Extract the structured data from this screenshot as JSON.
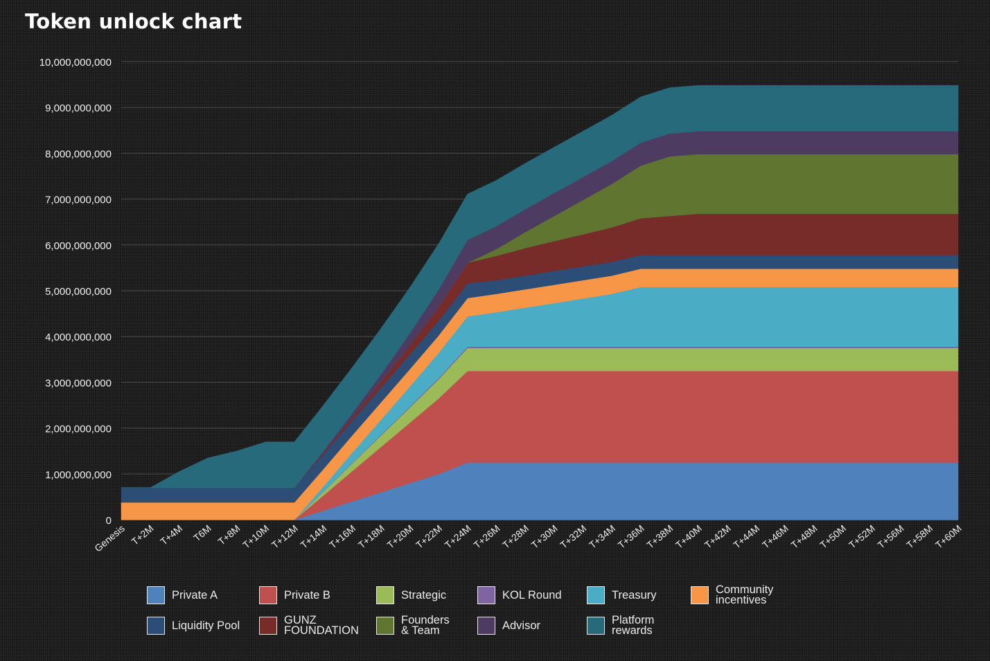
{
  "chart_data": {
    "type": "area",
    "stacked": true,
    "title": "Token unlock chart",
    "x": [
      "Genesis",
      "T+2M",
      "T+4M",
      "T6M",
      "T+8M",
      "T+10M",
      "T+12M",
      "T+14M",
      "T+16M",
      "T+18M",
      "T+20M",
      "T+22M",
      "T+24M",
      "T+26M",
      "T+28M",
      "T+30M",
      "T+32M",
      "T+34M",
      "T+36M",
      "T+38M",
      "T+40M",
      "T+42M",
      "T+44M",
      "T+46M",
      "T+48M",
      "T+50M",
      "T+52M",
      "T+56M",
      "T+58M",
      "T+60M"
    ],
    "ylim": [
      0,
      10000000000
    ],
    "yticks": [
      0,
      1000000000,
      2000000000,
      3000000000,
      4000000000,
      5000000000,
      6000000000,
      7000000000,
      8000000000,
      9000000000,
      10000000000
    ],
    "ytick_labels": [
      "0",
      "1,000,000,000",
      "2,000,000,000",
      "3,000,000,000",
      "4,000,000,000",
      "5,000,000,000",
      "6,000,000,000",
      "7,000,000,000",
      "8,000,000,000",
      "9,000,000,000",
      "10,000,000,000"
    ],
    "grid": true,
    "legend_position": "bottom",
    "series": [
      {
        "name": "Private A",
        "color": "#4f81bd",
        "values": [
          0,
          0,
          0,
          0,
          0,
          0,
          0,
          200000000,
          400000000,
          600000000,
          800000000,
          1000000000,
          1250000000,
          1250000000,
          1250000000,
          1250000000,
          1250000000,
          1250000000,
          1250000000,
          1250000000,
          1250000000,
          1250000000,
          1250000000,
          1250000000,
          1250000000,
          1250000000,
          1250000000,
          1250000000,
          1250000000,
          1250000000
        ]
      },
      {
        "name": "Private B",
        "color": "#c0504d",
        "values": [
          0,
          0,
          0,
          0,
          0,
          0,
          0,
          330000000,
          660000000,
          990000000,
          1320000000,
          1650000000,
          2000000000,
          2000000000,
          2000000000,
          2000000000,
          2000000000,
          2000000000,
          2000000000,
          2000000000,
          2000000000,
          2000000000,
          2000000000,
          2000000000,
          2000000000,
          2000000000,
          2000000000,
          2000000000,
          2000000000,
          2000000000
        ]
      },
      {
        "name": "Strategic",
        "color": "#9bbb59",
        "values": [
          0,
          0,
          0,
          0,
          0,
          0,
          0,
          80000000,
          170000000,
          250000000,
          330000000,
          420000000,
          500000000,
          500000000,
          500000000,
          500000000,
          500000000,
          500000000,
          500000000,
          500000000,
          500000000,
          500000000,
          500000000,
          500000000,
          500000000,
          500000000,
          500000000,
          500000000,
          500000000,
          500000000
        ]
      },
      {
        "name": "KOL Round",
        "color": "#8064a2",
        "values": [
          0,
          0,
          0,
          0,
          0,
          0,
          0,
          5000000,
          10000000,
          15000000,
          20000000,
          25000000,
          30000000,
          30000000,
          30000000,
          30000000,
          30000000,
          30000000,
          30000000,
          30000000,
          30000000,
          30000000,
          30000000,
          30000000,
          30000000,
          30000000,
          30000000,
          30000000,
          30000000,
          30000000
        ]
      },
      {
        "name": "Treasury",
        "color": "#4bacc6",
        "values": [
          0,
          0,
          0,
          0,
          0,
          0,
          0,
          110000000,
          220000000,
          330000000,
          440000000,
          550000000,
          660000000,
          750000000,
          850000000,
          950000000,
          1050000000,
          1150000000,
          1300000000,
          1300000000,
          1300000000,
          1300000000,
          1300000000,
          1300000000,
          1300000000,
          1300000000,
          1300000000,
          1300000000,
          1300000000,
          1300000000
        ]
      },
      {
        "name": "Community incentives",
        "color": "#f79646",
        "values": [
          380000000,
          380000000,
          380000000,
          380000000,
          380000000,
          380000000,
          380000000,
          380000000,
          380000000,
          380000000,
          380000000,
          380000000,
          400000000,
          400000000,
          400000000,
          400000000,
          400000000,
          400000000,
          400000000,
          400000000,
          400000000,
          400000000,
          400000000,
          400000000,
          400000000,
          400000000,
          400000000,
          400000000,
          400000000,
          400000000
        ]
      },
      {
        "name": "Liquidity Pool",
        "color": "#2c4d75",
        "values": [
          320000000,
          320000000,
          320000000,
          320000000,
          320000000,
          320000000,
          320000000,
          320000000,
          320000000,
          320000000,
          320000000,
          320000000,
          320000000,
          300000000,
          300000000,
          300000000,
          300000000,
          300000000,
          300000000,
          300000000,
          300000000,
          300000000,
          300000000,
          300000000,
          300000000,
          300000000,
          300000000,
          300000000,
          300000000,
          300000000
        ]
      },
      {
        "name": "GUNZ FOUNDATION",
        "color": "#772c2a",
        "values": [
          0,
          0,
          0,
          0,
          0,
          0,
          0,
          30000000,
          70000000,
          130000000,
          200000000,
          300000000,
          450000000,
          530000000,
          600000000,
          650000000,
          700000000,
          750000000,
          800000000,
          850000000,
          900000000,
          900000000,
          900000000,
          900000000,
          900000000,
          900000000,
          900000000,
          900000000,
          900000000,
          900000000
        ]
      },
      {
        "name": "Founders & Team",
        "color": "#5f7530",
        "values": [
          0,
          0,
          0,
          0,
          0,
          0,
          0,
          0,
          0,
          0,
          0,
          0,
          0,
          150000000,
          350000000,
          550000000,
          750000000,
          950000000,
          1150000000,
          1300000000,
          1300000000,
          1300000000,
          1300000000,
          1300000000,
          1300000000,
          1300000000,
          1300000000,
          1300000000,
          1300000000,
          1300000000
        ]
      },
      {
        "name": "Advisor",
        "color": "#4d3b62",
        "values": [
          0,
          0,
          0,
          0,
          0,
          0,
          0,
          40000000,
          90000000,
          160000000,
          260000000,
          380000000,
          500000000,
          500000000,
          500000000,
          500000000,
          500000000,
          500000000,
          500000000,
          500000000,
          500000000,
          500000000,
          500000000,
          500000000,
          500000000,
          500000000,
          500000000,
          500000000,
          500000000,
          500000000
        ]
      },
      {
        "name": "Platform rewards",
        "color": "#276a7c",
        "values": [
          0,
          0,
          350000000,
          650000000,
          800000000,
          1000000000,
          1000000000,
          1000000000,
          1000000000,
          1000000000,
          1000000000,
          1000000000,
          1000000000,
          1000000000,
          1000000000,
          1000000000,
          1000000000,
          1000000000,
          1000000000,
          1000000000,
          1000000000,
          1000000000,
          1000000000,
          1000000000,
          1000000000,
          1000000000,
          1000000000,
          1000000000,
          1000000000,
          1000000000
        ]
      }
    ]
  }
}
